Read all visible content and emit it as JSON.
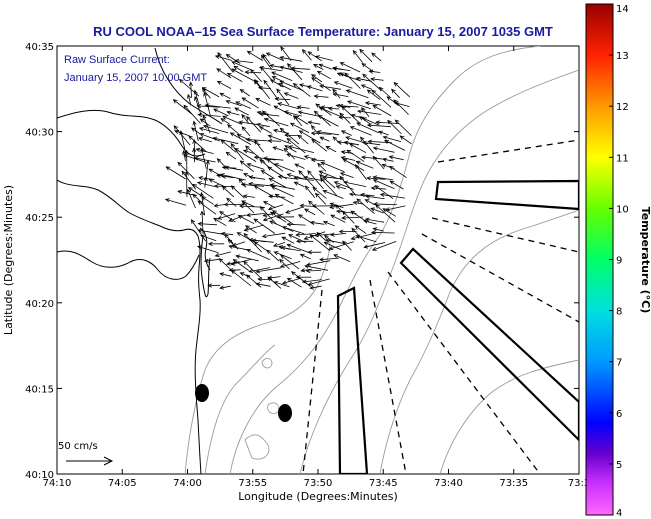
{
  "title": "RU COOL  NOAA–15  Sea Surface Temperature:  January 15, 2007 1035 GMT",
  "annotation": {
    "line1": "Raw Surface Current:",
    "line2": "January 15, 2007 10:00 GMT"
  },
  "axes": {
    "xlabel": "Longitude (Degrees:Minutes)",
    "ylabel": "Latitude (Degrees:Minutes)",
    "x_ticks": [
      "74:10",
      "74:05",
      "74:00",
      "73:55",
      "73:50",
      "73:45",
      "73:40",
      "73:35",
      "73:3"
    ],
    "y_ticks": [
      "40:35",
      "40:30",
      "40:25",
      "40:20",
      "40:15",
      "40:10"
    ]
  },
  "colorbar": {
    "label": "Temperature (°C)",
    "ticks": [
      "14",
      "13",
      "12",
      "11",
      "10",
      "9",
      "8",
      "7",
      "6",
      "5",
      "4"
    ],
    "min": 4,
    "max": 14
  },
  "scale_arrow": {
    "label": "50 cm/s"
  },
  "colors": {
    "title_text": "#1a1aa0",
    "coastline": "#000000",
    "bathymetry": "#9a9a9a",
    "vectors": "#000000"
  },
  "map_extent": {
    "lon_min_deg": 74.1667,
    "lon_max_deg": 73.5,
    "lat_min_deg": 40.1667,
    "lat_max_deg": 40.5833
  }
}
